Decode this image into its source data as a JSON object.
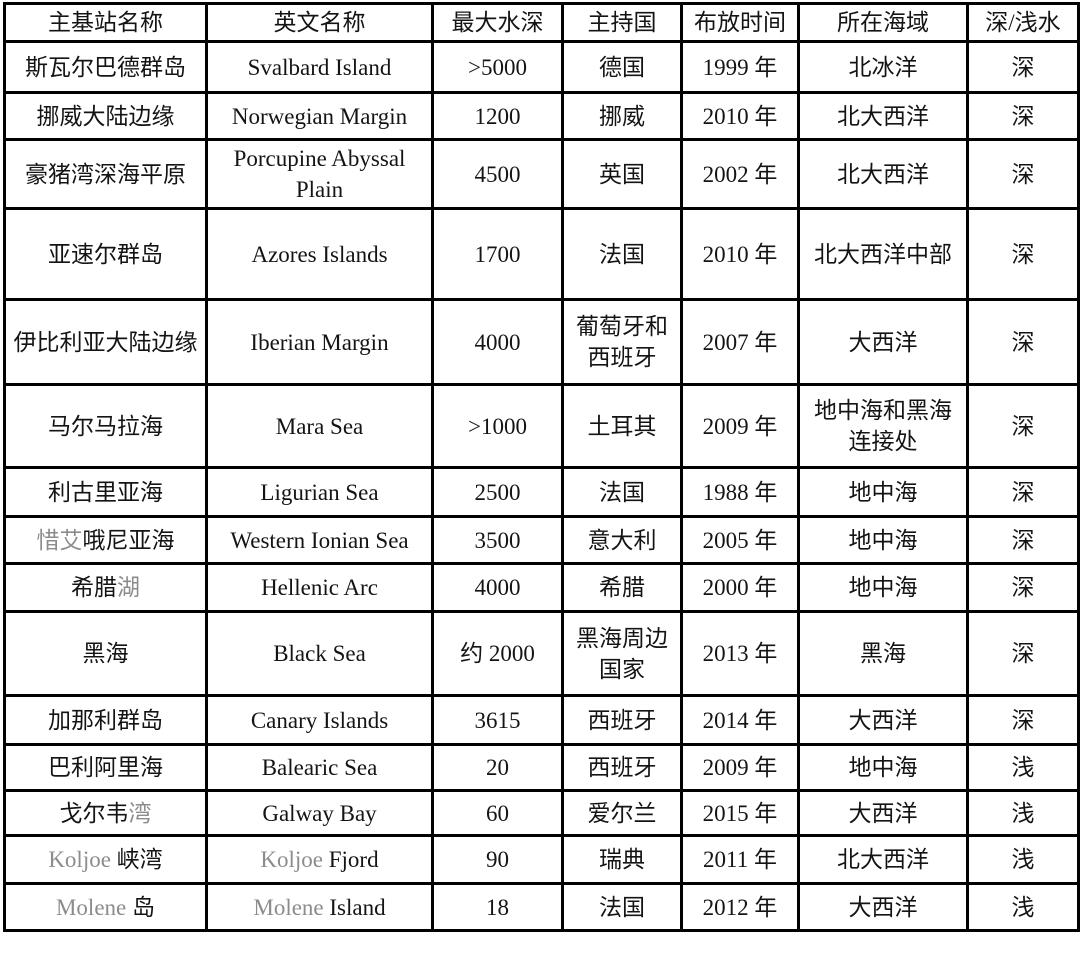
{
  "colors": {
    "text": "#141414",
    "muted_text": "#8c8c8c",
    "border": "#000000",
    "background": "#ffffff"
  },
  "table": {
    "keys": [
      "name",
      "english",
      "depth",
      "country",
      "time",
      "sea",
      "type"
    ],
    "headers": [
      "主基站名称",
      "英文名称",
      "最大水深",
      "主持国",
      "布放时间",
      "所在海域",
      "深/浅水"
    ],
    "rows": [
      {
        "name": "斯瓦尔巴德群岛",
        "english": "Svalbard Island",
        "depth": ">5000",
        "country": "德国",
        "time": "1999 年",
        "sea": "北冰洋",
        "type": "深"
      },
      {
        "name": "挪威大陆边缘",
        "english": "Norwegian Margin",
        "depth": "1200",
        "country": "挪威",
        "time": "2010 年",
        "sea": "北大西洋",
        "type": "深"
      },
      {
        "name": "豪猪湾深海平原",
        "english": "Porcupine Abyssal\nPlain",
        "depth": "4500",
        "country": "英国",
        "time": "2002 年",
        "sea": "北大西洋",
        "type": "深"
      },
      {
        "name": "亚速尔群岛",
        "english": "Azores Islands",
        "depth": "1700",
        "country": "法国",
        "time": "2010 年",
        "sea": "北大西洋中部",
        "type": "深"
      },
      {
        "name": "伊比利亚大陆边缘",
        "english": "Iberian Margin",
        "depth": "4000",
        "country": "葡萄牙和\n西班牙",
        "time": "2007 年",
        "sea": "大西洋",
        "type": "深"
      },
      {
        "name": "马尔马拉海",
        "english": "Mara Sea",
        "depth": ">1000",
        "country": "土耳其",
        "time": "2009 年",
        "sea": "地中海和黑海\n连接处",
        "type": "深"
      },
      {
        "name": "利古里亚海",
        "english": "Ligurian Sea",
        "depth": "2500",
        "country": "法国",
        "time": "1988 年",
        "sea": "地中海",
        "type": "深"
      },
      {
        "name": [
          {
            "text": "惜艾",
            "muted": true
          },
          {
            "text": "哦尼亚海",
            "muted": false
          }
        ],
        "english": "Western Ionian Sea",
        "depth": "3500",
        "country": "意大利",
        "time": "2005 年",
        "sea": "地中海",
        "type": "深"
      },
      {
        "name": [
          {
            "text": "希腊",
            "muted": false
          },
          {
            "text": "湖",
            "muted": true
          }
        ],
        "english": "Hellenic Arc",
        "depth": "4000",
        "country": "希腊",
        "time": "2000 年",
        "sea": "地中海",
        "type": "深"
      },
      {
        "name": "黑海",
        "english": "Black Sea",
        "depth": "约 2000",
        "country": "黑海周边\n国家",
        "time": "2013 年",
        "sea": "黑海",
        "type": "深"
      },
      {
        "name": "加那利群岛",
        "english": "Canary Islands",
        "depth": "3615",
        "country": "西班牙",
        "time": "2014 年",
        "sea": "大西洋",
        "type": "深"
      },
      {
        "name": "巴利阿里海",
        "english": "Balearic Sea",
        "depth": "20",
        "country": "西班牙",
        "time": "2009 年",
        "sea": "地中海",
        "type": "浅"
      },
      {
        "name": [
          {
            "text": "戈尔韦",
            "muted": false
          },
          {
            "text": "湾",
            "muted": true
          }
        ],
        "english": "Galway Bay",
        "depth": "60",
        "country": "爱尔兰",
        "time": "2015 年",
        "sea": "大西洋",
        "type": "浅"
      },
      {
        "name": [
          {
            "text": "Koljoe ",
            "muted": true
          },
          {
            "text": "峡湾",
            "muted": false
          }
        ],
        "english": [
          {
            "text": "Koljoe ",
            "muted": true
          },
          {
            "text": "Fjord",
            "muted": false
          }
        ],
        "depth": "90",
        "country": "瑞典",
        "time": "2011 年",
        "sea": "北大西洋",
        "type": "浅"
      },
      {
        "name": [
          {
            "text": "Molene ",
            "muted": true
          },
          {
            "text": "岛",
            "muted": false
          }
        ],
        "english": [
          {
            "text": "Molene ",
            "muted": true
          },
          {
            "text": "Island",
            "muted": false
          }
        ],
        "depth": "18",
        "country": "法国",
        "time": "2012 年",
        "sea": "大西洋",
        "type": "浅"
      }
    ]
  }
}
